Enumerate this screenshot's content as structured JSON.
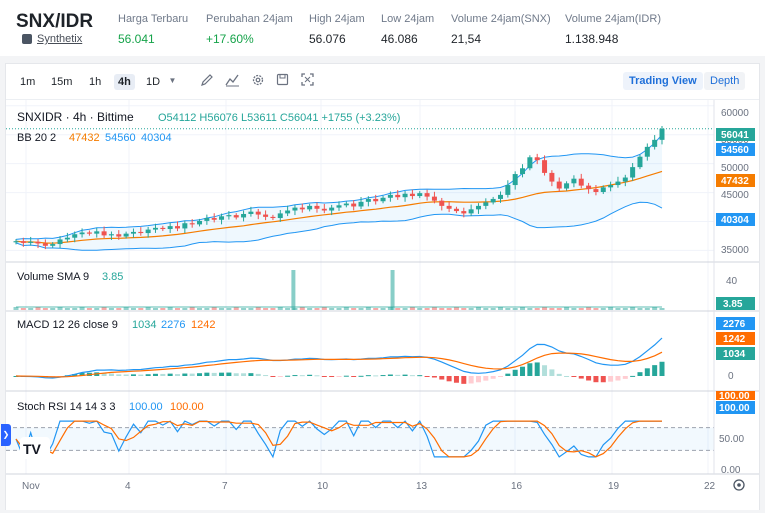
{
  "ticker": {
    "pair": "SNX/IDR",
    "name": "Synthetix",
    "stats": [
      {
        "label": "Harga Terbaru",
        "value": "56.041",
        "tone": "green"
      },
      {
        "label": "Perubahan 24jam",
        "value": "+17.60%",
        "tone": "green"
      },
      {
        "label": "High 24jam",
        "value": "56.076",
        "tone": "plain"
      },
      {
        "label": "Low 24jam",
        "value": "46.086",
        "tone": "plain"
      },
      {
        "label": "Volume 24jam(SNX)",
        "value": "21,54",
        "tone": "plain"
      },
      {
        "label": "Volume 24jam(IDR)",
        "value": "1.138.948",
        "tone": "plain"
      }
    ]
  },
  "toolbar": {
    "timeframes": [
      "1m",
      "15m",
      "1h",
      "4h",
      "1D"
    ],
    "active_timeframe": "4h",
    "icons": [
      "chevron-down-icon",
      "draw-icon",
      "indicator-icon",
      "settings-icon",
      "save-icon",
      "fullscreen-icon"
    ],
    "trading_view_label": "Trading View",
    "depth_label": "Depth"
  },
  "legends": {
    "symbol": "SNXIDR · 4h · Bittime",
    "ohlc": "O54112 H56076 L53611 C56041 +1755 (+3.23%)",
    "bb_name": "BB 20 2",
    "bb_values": [
      "47432",
      "54560",
      "40304"
    ],
    "vol_name": "Volume SMA 9",
    "vol_value": "3.85",
    "macd_name": "MACD 12 26 close 9",
    "macd_values": [
      "1034",
      "2276",
      "1242"
    ],
    "stoch_name": "Stoch RSI 14 14 3 3",
    "stoch_values": [
      "100.00",
      "100.00"
    ],
    "logo": "TV"
  },
  "price_axis": {
    "ticks": [
      "60000",
      "55000",
      "50000",
      "45000",
      "40000",
      "35000"
    ],
    "badges": {
      "last": "56041",
      "bb_upper": "54560",
      "bb_basis": "47432",
      "bb_lower": "40304"
    }
  },
  "volume_axis": {
    "ticks": [
      "40"
    ],
    "badge": "3.85"
  },
  "macd_axis": {
    "ticks": [
      "0"
    ],
    "badges": [
      "2276",
      "1242",
      "1034"
    ]
  },
  "stoch_axis": {
    "ticks": [
      "50.00",
      "0.00"
    ],
    "badges": [
      "100.00",
      "100.00"
    ]
  },
  "time_axis": {
    "labels": [
      "Nov",
      "4",
      "7",
      "10",
      "13",
      "16",
      "19",
      "22"
    ]
  },
  "colors": {
    "up": "#26a69a",
    "down": "#ef5350",
    "bb_band": "#2196f3",
    "bb_basis": "#f57c00",
    "macd_line": "#2196f3",
    "signal_line": "#ff6d00",
    "accent": "#2962ff"
  },
  "chart_data": [
    {
      "type": "candlestick",
      "title": "SNXIDR · 4h · Bittime",
      "ohlc_last": {
        "open": 54112,
        "high": 56076,
        "low": 53611,
        "close": 56041
      },
      "close_series": [
        36600,
        36300,
        36500,
        36200,
        35800,
        36100,
        36900,
        37200,
        37800,
        38100,
        37900,
        38300,
        37600,
        37800,
        37400,
        37900,
        38200,
        38000,
        38600,
        38900,
        38700,
        39200,
        38800,
        39700,
        39500,
        40100,
        40600,
        40300,
        40900,
        41100,
        40700,
        41300,
        41700,
        41200,
        40800,
        40600,
        41400,
        41900,
        42400,
        42100,
        42700,
        42200,
        41900,
        42400,
        42800,
        43100,
        42600,
        43400,
        43900,
        43500,
        44100,
        44600,
        44200,
        44800,
        44400,
        44900,
        44300,
        43600,
        42700,
        42200,
        41800,
        41400,
        42100,
        42700,
        43300,
        43900,
        44600,
        46300,
        48200,
        49200,
        51100,
        50600,
        48400,
        46900,
        45700,
        46600,
        47400,
        46200,
        45600,
        45100,
        45900,
        46300,
        46900,
        47600,
        49400,
        51200,
        52900,
        54112,
        56041
      ],
      "ylim": [
        33000,
        61000
      ],
      "bollinger": {
        "basis_last": 47432,
        "upper_last": 54560,
        "lower_last": 40304
      }
    },
    {
      "type": "bar",
      "title": "Volume SMA 9",
      "spikes_at": [
        8.5,
        11.8
      ],
      "spike_value": 40,
      "sma_last": 3.85
    },
    {
      "type": "line",
      "title": "MACD 12 26 close 9",
      "macd_last": 2276,
      "signal_last": 1242,
      "hist_last": 1034
    },
    {
      "type": "line",
      "title": "Stoch RSI 14 14 3 3",
      "k_last": 100.0,
      "d_last": 100.0,
      "ylim": [
        0,
        100
      ]
    }
  ]
}
